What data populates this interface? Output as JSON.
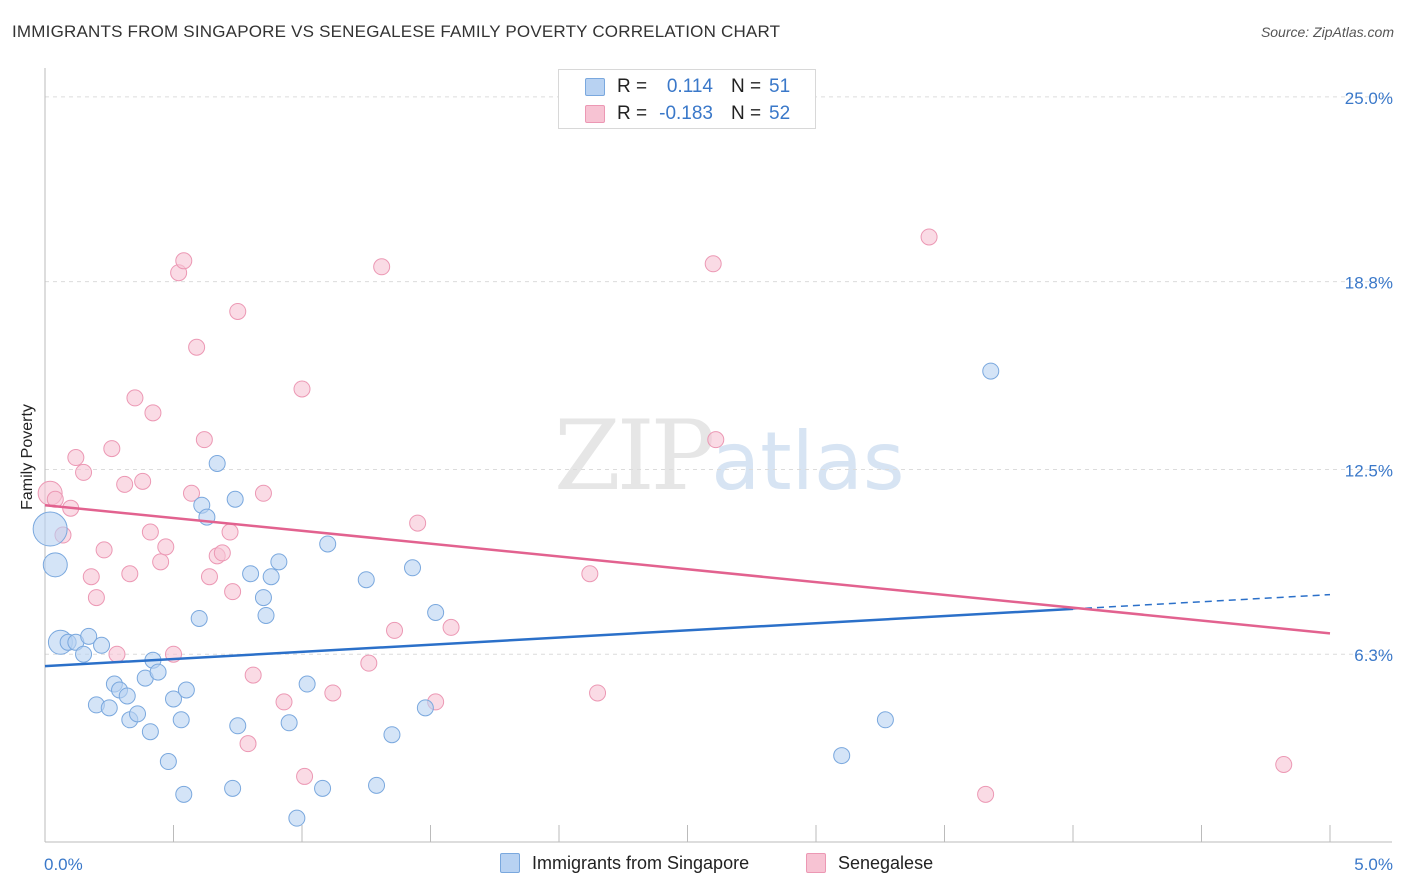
{
  "title": "IMMIGRANTS FROM SINGAPORE VS SENEGALESE FAMILY POVERTY CORRELATION CHART",
  "source": "Source: ZipAtlas.com",
  "watermark": {
    "zip": "ZIP",
    "atlas": "atlas"
  },
  "colors": {
    "blue_fill": "#b8d2f2",
    "blue_stroke": "#7aa8de",
    "blue_line": "#2b70c9",
    "pink_fill": "#f7c3d3",
    "pink_stroke": "#ec98b4",
    "pink_line": "#e2628f",
    "grid": "#dcdcdc",
    "tick_text": "#3a78c9"
  },
  "legend": {
    "series": [
      {
        "r_label": "R =",
        "r_value": "0.114",
        "n_label": "N =",
        "n_value": "51",
        "color": "#b8d2f2",
        "border": "#7aa8de"
      },
      {
        "r_label": "R =",
        "r_value": "-0.183",
        "n_label": "N =",
        "n_value": "52",
        "color": "#f7c3d3",
        "border": "#ec98b4"
      }
    ]
  },
  "chart_data": {
    "type": "scatter",
    "title": "IMMIGRANTS FROM SINGAPORE VS SENEGALESE FAMILY POVERTY CORRELATION CHART",
    "xlabel": "",
    "ylabel": "Family Poverty",
    "xlim": [
      0,
      5.0
    ],
    "ylim": [
      0,
      25.6
    ],
    "x_tick_labels": [
      "0.0%",
      "5.0%"
    ],
    "y_ticks": [
      6.3,
      12.5,
      18.8,
      25.0
    ],
    "y_tick_labels": [
      "6.3%",
      "12.5%",
      "18.8%",
      "25.0%"
    ],
    "series": [
      {
        "name": "Immigrants from Singapore",
        "trend": {
          "x0": 0.0,
          "y0": 5.9,
          "x1": 5.0,
          "y1": 8.3,
          "solid_until": 4.0
        },
        "points": [
          {
            "x": 0.02,
            "y": 10.5,
            "s": 3
          },
          {
            "x": 0.04,
            "y": 9.3,
            "s": 2
          },
          {
            "x": 0.06,
            "y": 6.7,
            "s": 2
          },
          {
            "x": 0.09,
            "y": 6.7,
            "s": 1
          },
          {
            "x": 0.12,
            "y": 6.7,
            "s": 1
          },
          {
            "x": 0.15,
            "y": 6.3,
            "s": 1
          },
          {
            "x": 0.17,
            "y": 6.9,
            "s": 1
          },
          {
            "x": 0.2,
            "y": 4.6,
            "s": 1
          },
          {
            "x": 0.22,
            "y": 6.6,
            "s": 1
          },
          {
            "x": 0.25,
            "y": 4.5,
            "s": 1
          },
          {
            "x": 0.27,
            "y": 5.3,
            "s": 1
          },
          {
            "x": 0.29,
            "y": 5.1,
            "s": 1
          },
          {
            "x": 0.32,
            "y": 4.9,
            "s": 1
          },
          {
            "x": 0.33,
            "y": 4.1,
            "s": 1
          },
          {
            "x": 0.36,
            "y": 4.3,
            "s": 1
          },
          {
            "x": 0.39,
            "y": 5.5,
            "s": 1
          },
          {
            "x": 0.41,
            "y": 3.7,
            "s": 1
          },
          {
            "x": 0.42,
            "y": 6.1,
            "s": 1
          },
          {
            "x": 0.44,
            "y": 5.7,
            "s": 1
          },
          {
            "x": 0.48,
            "y": 2.7,
            "s": 1
          },
          {
            "x": 0.5,
            "y": 4.8,
            "s": 1
          },
          {
            "x": 0.53,
            "y": 4.1,
            "s": 1
          },
          {
            "x": 0.55,
            "y": 5.1,
            "s": 1
          },
          {
            "x": 0.54,
            "y": 1.6,
            "s": 1
          },
          {
            "x": 0.6,
            "y": 7.5,
            "s": 1
          },
          {
            "x": 0.61,
            "y": 11.3,
            "s": 1
          },
          {
            "x": 0.63,
            "y": 10.9,
            "s": 1
          },
          {
            "x": 0.67,
            "y": 12.7,
            "s": 1
          },
          {
            "x": 0.74,
            "y": 11.5,
            "s": 1
          },
          {
            "x": 0.75,
            "y": 3.9,
            "s": 1
          },
          {
            "x": 0.73,
            "y": 1.8,
            "s": 1
          },
          {
            "x": 0.8,
            "y": 9.0,
            "s": 1
          },
          {
            "x": 0.85,
            "y": 8.2,
            "s": 1
          },
          {
            "x": 0.86,
            "y": 7.6,
            "s": 1
          },
          {
            "x": 0.88,
            "y": 8.9,
            "s": 1
          },
          {
            "x": 0.91,
            "y": 9.4,
            "s": 1
          },
          {
            "x": 0.95,
            "y": 4.0,
            "s": 1
          },
          {
            "x": 0.98,
            "y": 0.8,
            "s": 1
          },
          {
            "x": 1.02,
            "y": 5.3,
            "s": 1
          },
          {
            "x": 1.08,
            "y": 1.8,
            "s": 1
          },
          {
            "x": 1.1,
            "y": 10.0,
            "s": 1
          },
          {
            "x": 1.25,
            "y": 8.8,
            "s": 1
          },
          {
            "x": 1.29,
            "y": 1.9,
            "s": 1
          },
          {
            "x": 1.35,
            "y": 3.6,
            "s": 1
          },
          {
            "x": 1.43,
            "y": 9.2,
            "s": 1
          },
          {
            "x": 1.48,
            "y": 4.5,
            "s": 1
          },
          {
            "x": 1.52,
            "y": 7.7,
            "s": 1
          },
          {
            "x": 3.1,
            "y": 2.9,
            "s": 1
          },
          {
            "x": 3.27,
            "y": 4.1,
            "s": 1
          },
          {
            "x": 3.68,
            "y": 15.8,
            "s": 1
          }
        ]
      },
      {
        "name": "Senegalese",
        "trend": {
          "x0": 0.0,
          "y0": 11.3,
          "x1": 5.0,
          "y1": 7.0
        },
        "points": [
          {
            "x": 0.02,
            "y": 11.7,
            "s": 2
          },
          {
            "x": 0.04,
            "y": 11.5,
            "s": 1
          },
          {
            "x": 0.07,
            "y": 10.3,
            "s": 1
          },
          {
            "x": 0.1,
            "y": 11.2,
            "s": 1
          },
          {
            "x": 0.12,
            "y": 12.9,
            "s": 1
          },
          {
            "x": 0.15,
            "y": 12.4,
            "s": 1
          },
          {
            "x": 0.18,
            "y": 8.9,
            "s": 1
          },
          {
            "x": 0.2,
            "y": 8.2,
            "s": 1
          },
          {
            "x": 0.23,
            "y": 9.8,
            "s": 1
          },
          {
            "x": 0.26,
            "y": 13.2,
            "s": 1
          },
          {
            "x": 0.28,
            "y": 6.3,
            "s": 1
          },
          {
            "x": 0.31,
            "y": 12.0,
            "s": 1
          },
          {
            "x": 0.33,
            "y": 9.0,
            "s": 1
          },
          {
            "x": 0.35,
            "y": 14.9,
            "s": 1
          },
          {
            "x": 0.38,
            "y": 12.1,
            "s": 1
          },
          {
            "x": 0.41,
            "y": 10.4,
            "s": 1
          },
          {
            "x": 0.42,
            "y": 14.4,
            "s": 1
          },
          {
            "x": 0.45,
            "y": 9.4,
            "s": 1
          },
          {
            "x": 0.47,
            "y": 9.9,
            "s": 1
          },
          {
            "x": 0.5,
            "y": 6.3,
            "s": 1
          },
          {
            "x": 0.52,
            "y": 19.1,
            "s": 1
          },
          {
            "x": 0.54,
            "y": 19.5,
            "s": 1
          },
          {
            "x": 0.57,
            "y": 11.7,
            "s": 1
          },
          {
            "x": 0.59,
            "y": 16.6,
            "s": 1
          },
          {
            "x": 0.62,
            "y": 13.5,
            "s": 1
          },
          {
            "x": 0.64,
            "y": 8.9,
            "s": 1
          },
          {
            "x": 0.67,
            "y": 9.6,
            "s": 1
          },
          {
            "x": 0.69,
            "y": 9.7,
            "s": 1
          },
          {
            "x": 0.72,
            "y": 10.4,
            "s": 1
          },
          {
            "x": 0.73,
            "y": 8.4,
            "s": 1
          },
          {
            "x": 0.75,
            "y": 17.8,
            "s": 1
          },
          {
            "x": 0.79,
            "y": 3.3,
            "s": 1
          },
          {
            "x": 0.81,
            "y": 5.6,
            "s": 1
          },
          {
            "x": 0.85,
            "y": 11.7,
            "s": 1
          },
          {
            "x": 0.93,
            "y": 4.7,
            "s": 1
          },
          {
            "x": 1.0,
            "y": 15.2,
            "s": 1
          },
          {
            "x": 1.01,
            "y": 2.2,
            "s": 1
          },
          {
            "x": 1.12,
            "y": 5.0,
            "s": 1
          },
          {
            "x": 1.26,
            "y": 6.0,
            "s": 1
          },
          {
            "x": 1.31,
            "y": 19.3,
            "s": 1
          },
          {
            "x": 1.36,
            "y": 7.1,
            "s": 1
          },
          {
            "x": 1.45,
            "y": 10.7,
            "s": 1
          },
          {
            "x": 1.52,
            "y": 4.7,
            "s": 1
          },
          {
            "x": 1.58,
            "y": 7.2,
            "s": 1
          },
          {
            "x": 2.12,
            "y": 9.0,
            "s": 1
          },
          {
            "x": 2.15,
            "y": 5.0,
            "s": 1
          },
          {
            "x": 2.6,
            "y": 19.4,
            "s": 1
          },
          {
            "x": 2.61,
            "y": 13.5,
            "s": 1
          },
          {
            "x": 3.44,
            "y": 20.3,
            "s": 1
          },
          {
            "x": 3.66,
            "y": 1.6,
            "s": 1
          },
          {
            "x": 4.82,
            "y": 2.6,
            "s": 1
          }
        ]
      }
    ]
  }
}
